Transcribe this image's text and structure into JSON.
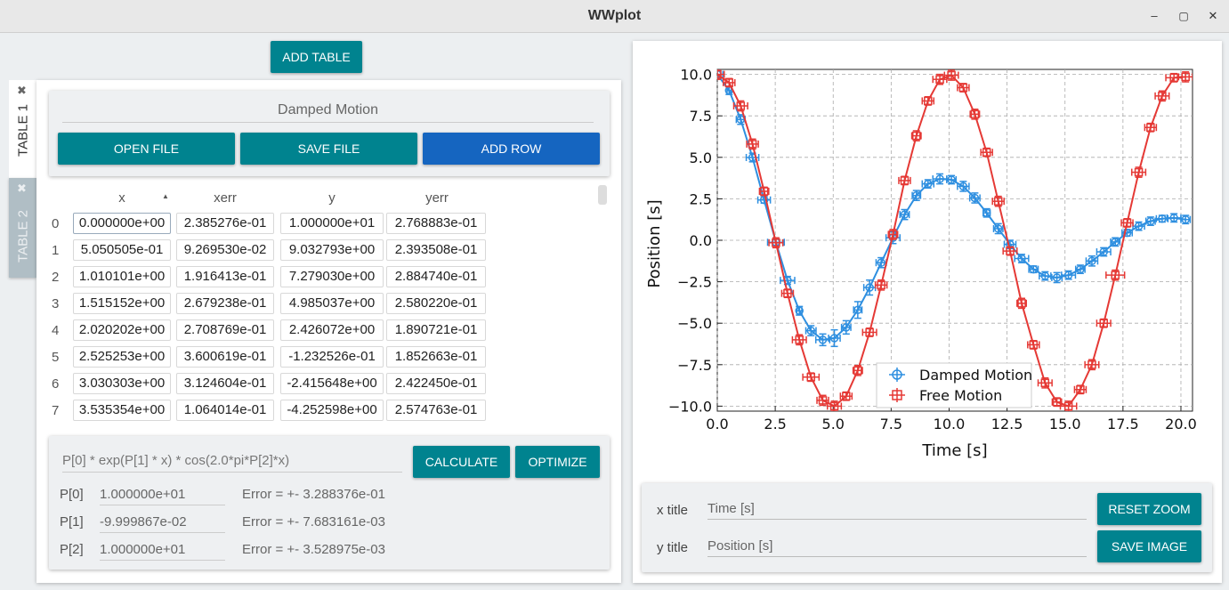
{
  "window": {
    "title": "WWplot",
    "minimize_icon": "–",
    "maximize_icon": "▢",
    "close_icon": "✕"
  },
  "toolbar": {
    "add_table_label": "ADD TABLE"
  },
  "tabs": [
    {
      "label": "TABLE 1",
      "close_icon": "✖",
      "active": true
    },
    {
      "label": "TABLE 2",
      "close_icon": "✖",
      "active": false
    }
  ],
  "table_card": {
    "name": "Damped Motion",
    "open_file_label": "OPEN FILE",
    "save_file_label": "SAVE FILE",
    "add_row_label": "ADD ROW"
  },
  "table": {
    "columns": [
      "x",
      "xerr",
      "y",
      "yerr"
    ],
    "sort_icon": "▲",
    "rows": [
      [
        "0",
        "0.000000e+00",
        "2.385276e-01",
        "1.000000e+01",
        "2.768883e-01"
      ],
      [
        "1",
        "5.050505e-01",
        "9.269530e-02",
        "9.032793e+00",
        "2.393508e-01"
      ],
      [
        "2",
        "1.010101e+00",
        "1.916413e-01",
        "7.279030e+00",
        "2.884740e-01"
      ],
      [
        "3",
        "1.515152e+00",
        "2.679238e-01",
        "4.985037e+00",
        "2.580220e-01"
      ],
      [
        "4",
        "2.020202e+00",
        "2.708769e-01",
        "2.426072e+00",
        "1.890721e-01"
      ],
      [
        "5",
        "2.525253e+00",
        "3.600619e-01",
        "-1.232526e-01",
        "1.852663e-01"
      ],
      [
        "6",
        "3.030303e+00",
        "3.124604e-01",
        "-2.415648e+00",
        "2.422450e-01"
      ],
      [
        "7",
        "3.535354e+00",
        "1.064014e-01",
        "-4.252598e+00",
        "2.574763e-01"
      ]
    ]
  },
  "fit": {
    "expression": "P[0] * exp(P[1] * x) * cos(2.0*pi*P[2]*x)",
    "calculate_label": "CALCULATE",
    "optimize_label": "OPTIMIZE",
    "params": [
      {
        "name": "P[0]",
        "value": "1.000000e+01",
        "error": "Error = +- 3.288376e-01"
      },
      {
        "name": "P[1]",
        "value": "-9.999867e-02",
        "error": "Error = +- 7.683161e-03"
      },
      {
        "name": "P[2]",
        "value": "1.000000e+01",
        "error": "Error = +- 3.528975e-03"
      }
    ]
  },
  "plot_controls": {
    "x_title_label": "x title",
    "x_title_value": "Time [s]",
    "y_title_label": "y title",
    "y_title_value": "Position [s]",
    "reset_zoom_label": "RESET ZOOM",
    "save_image_label": "SAVE IMAGE"
  },
  "chart_data": {
    "type": "line",
    "xlabel": "Time [s]",
    "ylabel": "Position [s]",
    "xlim": [
      0,
      20.5
    ],
    "ylim": [
      -10.3,
      10.3
    ],
    "xticks": [
      0.0,
      2.5,
      5.0,
      7.5,
      10.0,
      12.5,
      15.0,
      17.5,
      20.0
    ],
    "xtick_labels": [
      "0.0",
      "2.5",
      "5.0",
      "7.5",
      "10.0",
      "12.5",
      "15.0",
      "17.5",
      "20.0"
    ],
    "yticks": [
      10.0,
      7.5,
      5.0,
      2.5,
      0.0,
      -2.5,
      -5.0,
      -7.5,
      -10.0
    ],
    "ytick_labels": [
      "10.0",
      "7.5",
      "5.0",
      "2.5",
      "0.0",
      "−2.5",
      "−5.0",
      "−7.5",
      "−10.0"
    ],
    "grid": true,
    "legend_position": "bottom-center",
    "series": [
      {
        "name": "Damped Motion",
        "color": "#2e8fe0",
        "x": [
          0.0,
          0.51,
          1.01,
          1.52,
          2.02,
          2.53,
          3.03,
          3.54,
          4.04,
          4.55,
          5.05,
          5.56,
          6.06,
          6.57,
          7.07,
          7.58,
          8.08,
          8.59,
          9.09,
          9.6,
          10.1,
          10.61,
          11.11,
          11.62,
          12.12,
          12.63,
          13.13,
          13.64,
          14.14,
          14.65,
          15.15,
          15.66,
          16.16,
          16.67,
          17.17,
          17.68,
          18.18,
          18.69,
          19.19,
          19.7,
          20.2
        ],
        "y": [
          10.0,
          9.03,
          7.28,
          4.99,
          2.43,
          -0.12,
          -2.42,
          -4.25,
          -5.45,
          -6.0,
          -5.9,
          -5.25,
          -4.2,
          -2.85,
          -1.35,
          0.15,
          1.55,
          2.7,
          3.4,
          3.7,
          3.65,
          3.25,
          2.55,
          1.65,
          0.7,
          -0.25,
          -1.1,
          -1.75,
          -2.15,
          -2.25,
          -2.1,
          -1.75,
          -1.25,
          -0.7,
          -0.1,
          0.45,
          0.85,
          1.15,
          1.3,
          1.35,
          1.25
        ],
        "xerr": [
          0.24,
          0.09,
          0.19,
          0.27,
          0.27,
          0.36,
          0.31,
          0.11,
          0.22,
          0.3,
          0.25,
          0.2,
          0.18,
          0.25,
          0.22,
          0.3,
          0.2,
          0.18,
          0.25,
          0.3,
          0.2,
          0.25,
          0.22,
          0.15,
          0.2,
          0.25,
          0.3,
          0.2,
          0.25,
          0.22,
          0.3,
          0.2,
          0.25,
          0.3,
          0.2,
          0.22,
          0.25,
          0.2,
          0.25,
          0.3,
          0.2
        ],
        "yerr": [
          0.28,
          0.24,
          0.29,
          0.26,
          0.19,
          0.19,
          0.24,
          0.26,
          0.3,
          0.35,
          0.5,
          0.4,
          0.5,
          0.45,
          0.3,
          0.35,
          0.3,
          0.3,
          0.25,
          0.3,
          0.25,
          0.3,
          0.3,
          0.25,
          0.3,
          0.25,
          0.25,
          0.2,
          0.25,
          0.3,
          0.25,
          0.25,
          0.3,
          0.25,
          0.25,
          0.2,
          0.25,
          0.25,
          0.2,
          0.25,
          0.25
        ]
      },
      {
        "name": "Free Motion",
        "color": "#e53935",
        "x": [
          0.0,
          0.51,
          1.01,
          1.52,
          2.02,
          2.53,
          3.03,
          3.54,
          4.04,
          4.55,
          5.05,
          5.56,
          6.06,
          6.57,
          7.07,
          7.58,
          8.08,
          8.59,
          9.09,
          9.6,
          10.1,
          10.61,
          11.11,
          11.62,
          12.12,
          12.63,
          13.13,
          13.64,
          14.14,
          14.65,
          15.15,
          15.66,
          16.16,
          16.67,
          17.17,
          17.68,
          18.18,
          18.69,
          19.19,
          19.7,
          20.2
        ],
        "y": [
          10.0,
          9.5,
          8.1,
          5.8,
          2.95,
          -0.15,
          -3.2,
          -6.0,
          -8.25,
          -9.65,
          -10.0,
          -9.4,
          -7.85,
          -5.55,
          -2.7,
          0.35,
          3.6,
          6.3,
          8.4,
          9.7,
          9.95,
          9.2,
          7.6,
          5.3,
          2.35,
          -0.65,
          -3.8,
          -6.3,
          -8.6,
          -9.75,
          -10.0,
          -9.0,
          -7.5,
          -5.0,
          -2.1,
          1.05,
          4.1,
          6.8,
          8.7,
          9.8,
          9.85
        ],
        "xerr": [
          0.3,
          0.25,
          0.3,
          0.25,
          0.2,
          0.3,
          0.25,
          0.3,
          0.35,
          0.25,
          0.3,
          0.25,
          0.2,
          0.3,
          0.25,
          0.2,
          0.25,
          0.2,
          0.25,
          0.3,
          0.3,
          0.25,
          0.2,
          0.25,
          0.25,
          0.3,
          0.2,
          0.25,
          0.3,
          0.2,
          0.35,
          0.25,
          0.3,
          0.3,
          0.4,
          0.25,
          0.3,
          0.25,
          0.3,
          0.35,
          0.3
        ],
        "yerr": [
          0.3,
          0.25,
          0.3,
          0.3,
          0.25,
          0.3,
          0.25,
          0.3,
          0.25,
          0.3,
          0.3,
          0.25,
          0.3,
          0.25,
          0.3,
          0.3,
          0.25,
          0.3,
          0.25,
          0.3,
          0.3,
          0.25,
          0.3,
          0.25,
          0.3,
          0.25,
          0.3,
          0.25,
          0.3,
          0.25,
          0.3,
          0.25,
          0.3,
          0.25,
          0.3,
          0.25,
          0.3,
          0.25,
          0.3,
          0.25,
          0.3
        ]
      }
    ]
  }
}
